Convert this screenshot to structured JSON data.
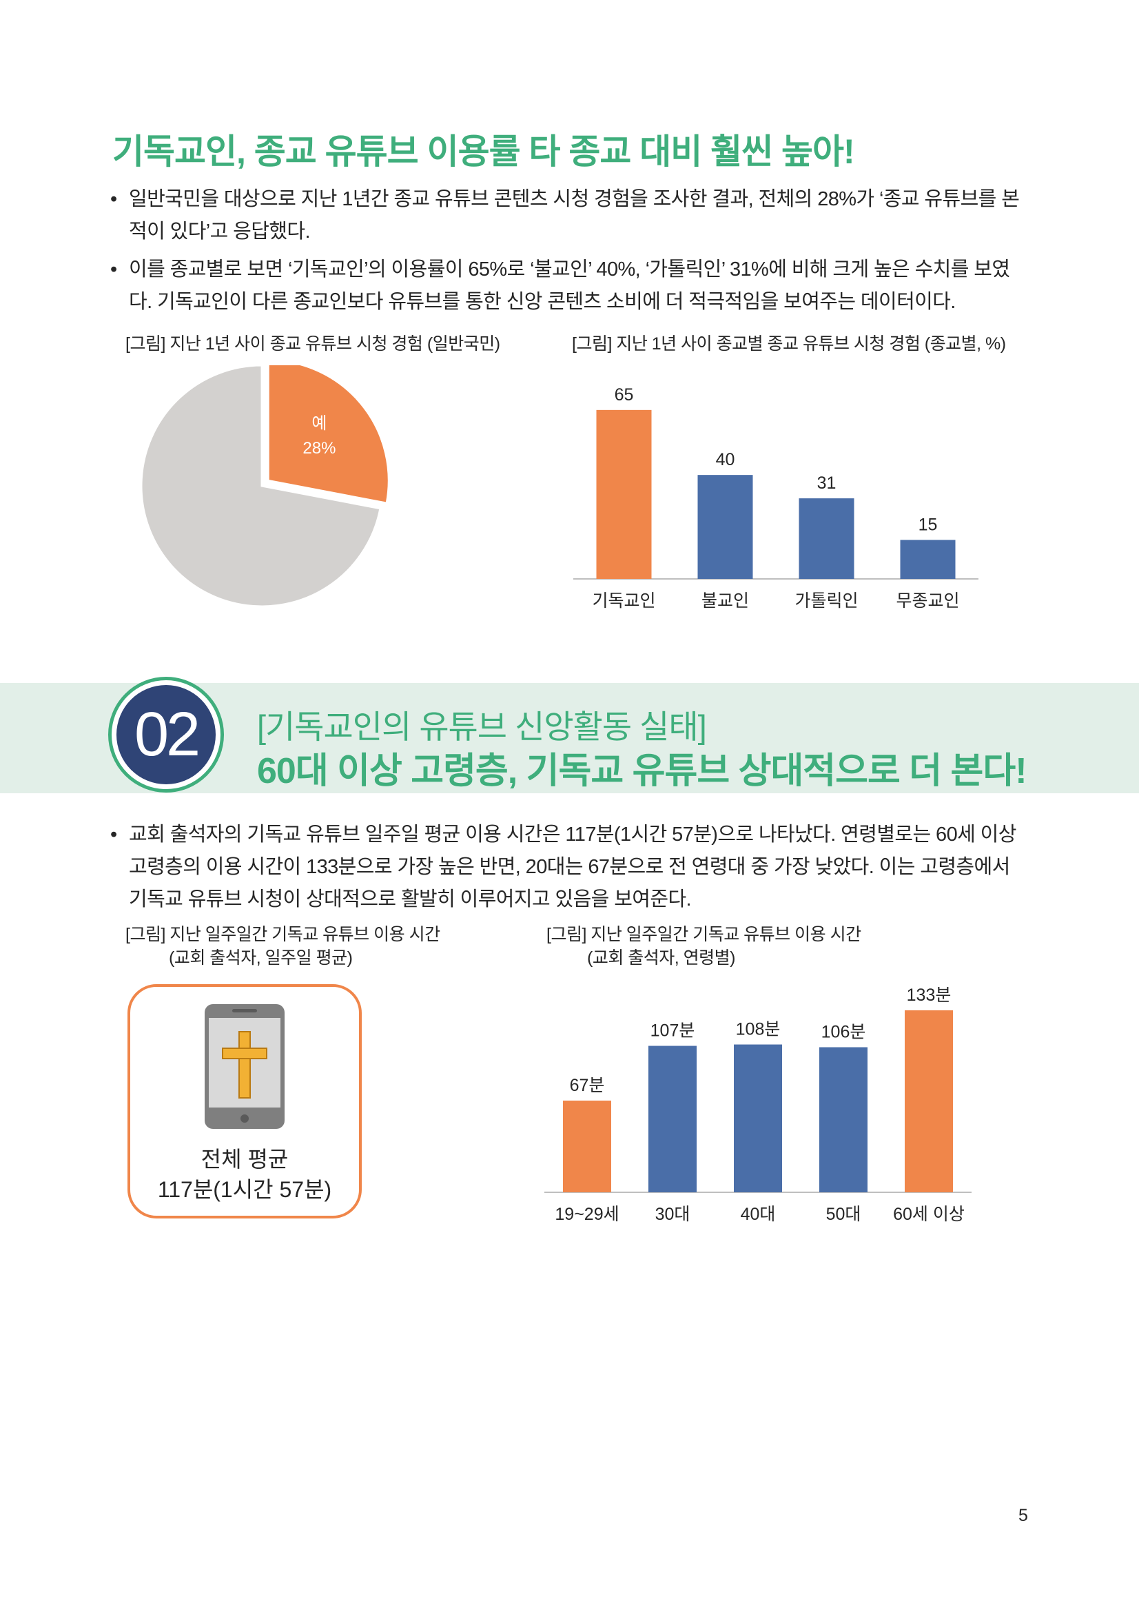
{
  "section1": {
    "headline": "기독교인, 종교 유튜브 이용률 타 종교 대비 훨씬 높아!",
    "bullets": [
      {
        "marker": "•",
        "line1": "일반국민을 대상으로 지난 1년간 종교 유튜브 콘텐츠 시청 경험을 조사한 결과, 전체의 28%가 ‘종교 유튜브를 본",
        "line2": "적이 있다’고 응답했다."
      },
      {
        "marker": "•",
        "line1": "이를 종교별로 보면 ‘기독교인’의 이용률이 65%로 ‘불교인’ 40%, ‘가톨릭인’ 31%에 비해 크게 높은 수치를 보였",
        "line2": "다. 기독교인이 다른 종교인보다 유튜브를 통한 신앙 콘텐츠 소비에 더 적극적임을 보여주는 데이터이다."
      }
    ],
    "pie_caption": "[그림] 지난 1년 사이 종교 유튜브 시청 경험 (일반국민)",
    "bar_caption": "[그림] 지난 1년 사이 종교별 종교 유튜브 시청 경험 (종교별, %)"
  },
  "section2": {
    "number": "02",
    "subtitle": "[기독교인의 유튜브 신앙활동 실태]",
    "title": "60대 이상 고령층, 기독교 유튜브 상대적으로 더 본다!",
    "bullets": [
      {
        "marker": "•",
        "line1": "교회 출석자의 기독교 유튜브 일주일 평균 이용 시간은 117분(1시간 57분)으로 나타났다. 연령별로는 60세 이상",
        "line2": "고령층의 이용 시간이 133분으로 가장 높은 반면, 20대는 67분으로 전 연령대 중 가장 낮았다. 이는 고령층에서",
        "line3": "기독교 유튜브 시청이 상대적으로 활발히 이루어지고 있음을 보여준다."
      }
    ],
    "card_caption_1": "[그림] 지난 일주일간 기독교 유튜브 이용 시간",
    "card_caption_2": "(교회 출석자, 일주일 평균)",
    "card_icon": "phone-cross-icon",
    "avg_label": "전체 평균",
    "avg_value": "117분(1시간 57분)",
    "age_caption_1": "[그림] 지난 일주일간 기독교 유튜브 이용 시간",
    "age_caption_2": "(교회 출석자, 연령별)"
  },
  "page_number": "5",
  "colors": {
    "green": "#3fae7c",
    "orange": "#f0864a",
    "blue": "#4a6ea8",
    "gray": "#d3d1cf",
    "navy": "#2f4476",
    "band": "#e2efe8"
  },
  "chart_data": [
    {
      "type": "pie",
      "slices": [
        {
          "label": "예",
          "value": 28,
          "value_label": "28%",
          "color": "#f0864a",
          "exploded": true
        },
        {
          "label": "",
          "value": 72,
          "color": "#d3d1cf"
        }
      ]
    },
    {
      "type": "bar",
      "categories": [
        "기독교인",
        "불교인",
        "가톨릭인",
        "무종교인"
      ],
      "values": [
        65,
        40,
        31,
        15
      ],
      "value_labels": [
        "65",
        "40",
        "31",
        "15"
      ],
      "colors": [
        "#f0864a",
        "#4a6ea8",
        "#4a6ea8",
        "#4a6ea8"
      ],
      "ylim": [
        0,
        70
      ],
      "grid": false
    },
    {
      "type": "bar",
      "categories": [
        "19~29세",
        "30대",
        "40대",
        "50대",
        "60세 이상"
      ],
      "values": [
        67,
        107,
        108,
        106,
        133
      ],
      "value_labels": [
        "67분",
        "107분",
        "108분",
        "106분",
        "133분"
      ],
      "colors": [
        "#f0864a",
        "#4a6ea8",
        "#4a6ea8",
        "#4a6ea8",
        "#f0864a"
      ],
      "ylim": [
        0,
        140
      ],
      "grid": false
    }
  ]
}
